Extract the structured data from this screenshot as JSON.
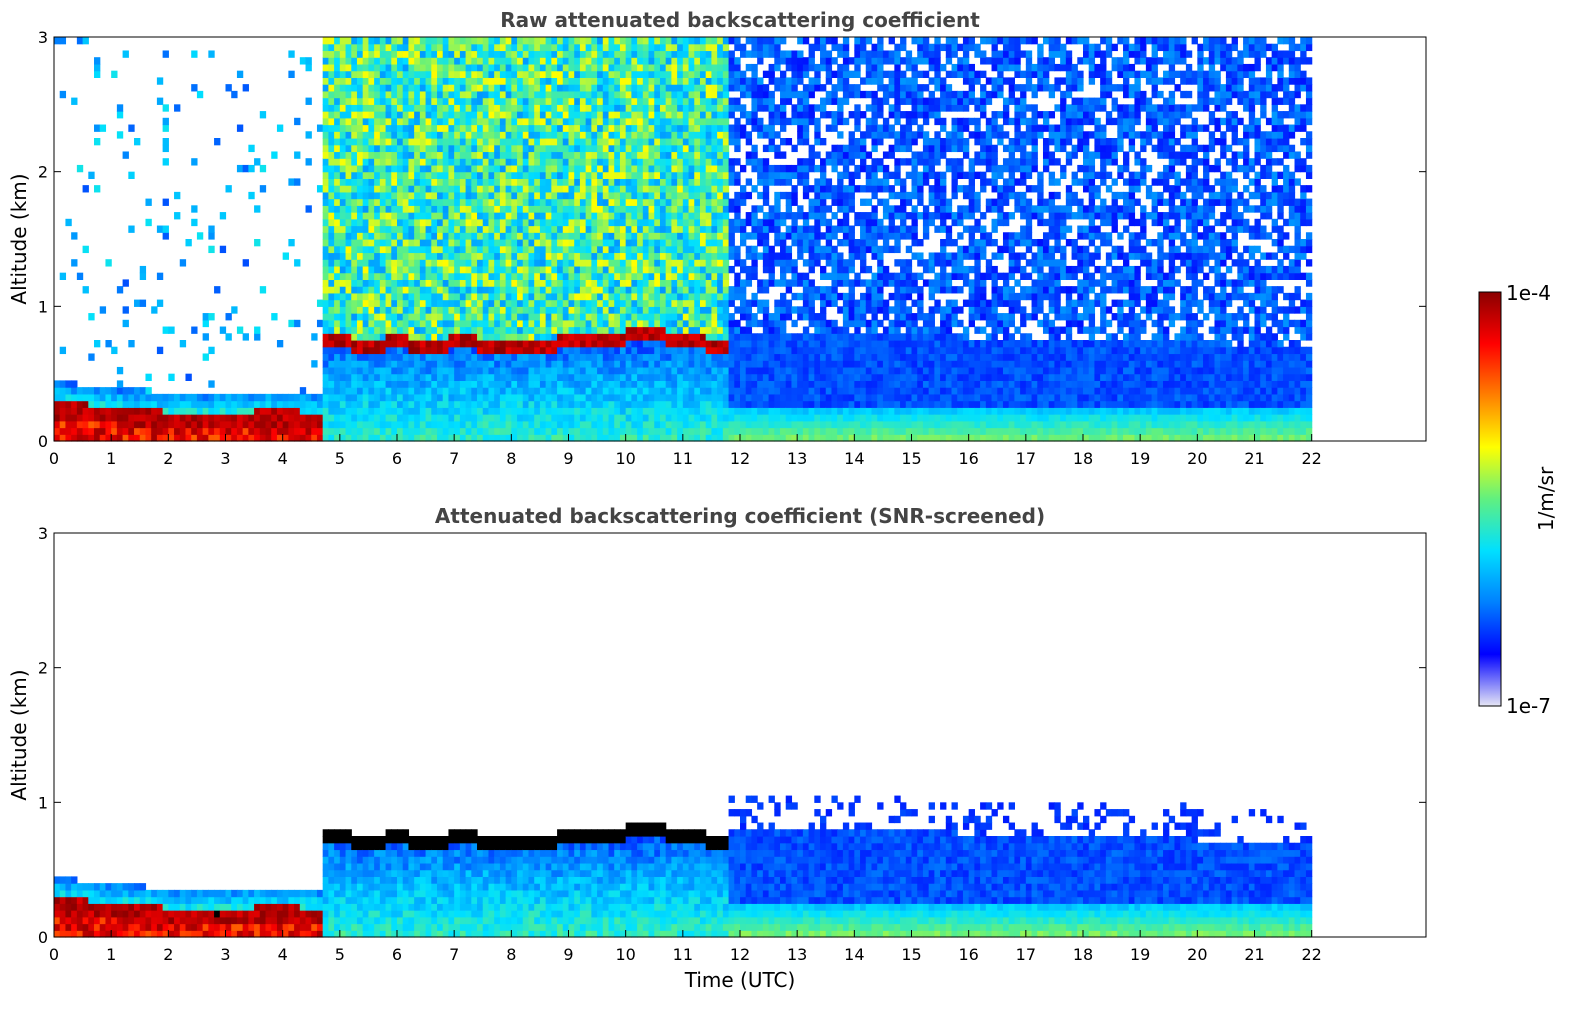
{
  "chart_data": [
    {
      "type": "heatmap",
      "title": "Raw attenuated backscattering coefficient",
      "xlabel": "",
      "ylabel": "Altitude (km)",
      "xlim": [
        0,
        24
      ],
      "ylim": [
        0,
        3
      ],
      "xticks": [
        "0",
        "1",
        "2",
        "3",
        "4",
        "5",
        "6",
        "7",
        "8",
        "9",
        "10",
        "11",
        "12",
        "13",
        "14",
        "15",
        "16",
        "17",
        "18",
        "19",
        "20",
        "21",
        "22"
      ],
      "yticks": [
        "0",
        "1",
        "2",
        "3"
      ],
      "data_end_time": 22,
      "screened": false,
      "layers": [
        {
          "name": "surface-layer-top",
          "x": [
            0,
            1,
            2,
            3,
            4,
            4.6
          ],
          "y": [
            0.22,
            0.18,
            0.14,
            0.14,
            0.15,
            0.14
          ]
        },
        {
          "name": "residual-layer-top",
          "x": [
            5,
            5.5,
            6,
            6.5,
            7,
            7.5,
            8,
            8.5,
            9,
            9.5,
            10,
            10.5,
            11,
            11.5
          ],
          "y": [
            0.72,
            0.68,
            0.73,
            0.67,
            0.72,
            0.7,
            0.69,
            0.66,
            0.74,
            0.71,
            0.76,
            0.77,
            0.72,
            0.7
          ]
        }
      ]
    },
    {
      "type": "heatmap",
      "title": "Attenuated backscattering coefficient (SNR-screened)",
      "xlabel": "Time (UTC)",
      "ylabel": "Altitude (km)",
      "xlim": [
        0,
        24
      ],
      "ylim": [
        0,
        3
      ],
      "xticks": [
        "0",
        "1",
        "2",
        "3",
        "4",
        "5",
        "6",
        "7",
        "8",
        "9",
        "10",
        "11",
        "12",
        "13",
        "14",
        "15",
        "16",
        "17",
        "18",
        "19",
        "20",
        "21",
        "22"
      ],
      "yticks": [
        "0",
        "1",
        "2",
        "3"
      ],
      "data_end_time": 22,
      "screened": true,
      "layers": [
        {
          "name": "surface-layer-top",
          "x": [
            0,
            1,
            2,
            3,
            4,
            4.6
          ],
          "y": [
            0.22,
            0.18,
            0.14,
            0.14,
            0.15,
            0.14
          ]
        },
        {
          "name": "residual-layer-top",
          "x": [
            5,
            5.5,
            6,
            6.5,
            7,
            7.5,
            8,
            8.5,
            9,
            9.5,
            10,
            10.5,
            11,
            11.5
          ],
          "y": [
            0.72,
            0.68,
            0.73,
            0.67,
            0.72,
            0.7,
            0.69,
            0.66,
            0.74,
            0.71,
            0.76,
            0.77,
            0.72,
            0.7
          ]
        }
      ]
    }
  ],
  "colorbar": {
    "min_label": "1e-7",
    "max_label": "1e-4",
    "unit": "1/m/sr",
    "colormap": [
      "#e6e6f5",
      "#0000ff",
      "#0080ff",
      "#00e0ff",
      "#60f080",
      "#ffff00",
      "#ff8000",
      "#ff0000",
      "#8b0000"
    ]
  }
}
